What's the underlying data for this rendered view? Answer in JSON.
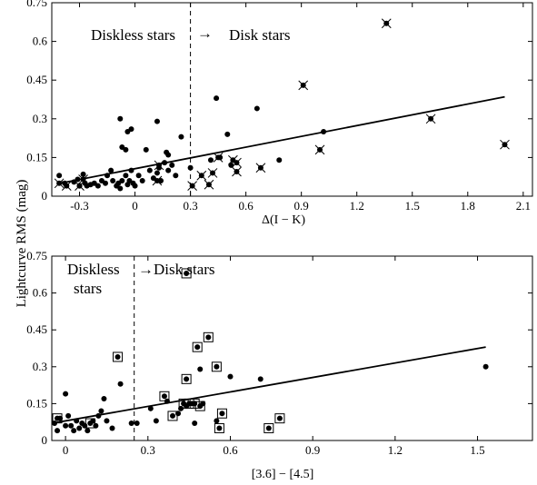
{
  "figure": {
    "ylabel": "Lightcurve RMS (mag)"
  },
  "chart_data": [
    {
      "type": "scatter",
      "xlabel": "Δ(I − K)",
      "xlim": [
        -0.45,
        2.15
      ],
      "ylim": [
        0,
        0.75
      ],
      "xticks": [
        -0.3,
        0,
        0.3,
        0.6,
        0.9,
        1.2,
        1.5,
        1.8,
        2.1
      ],
      "xtick_labels": [
        "-0.3",
        "0",
        "0.3",
        "0.6",
        "0.9",
        "1.2",
        "1.5",
        "1.8",
        "2.1"
      ],
      "yticks": [
        0,
        0.15,
        0.3,
        0.45,
        0.6,
        0.75
      ],
      "ytick_labels": [
        "0",
        "0.15",
        "0.3",
        "0.45",
        "0.6",
        "0.75"
      ],
      "divider_x": 0.3,
      "annotations": {
        "left": "Diskless stars",
        "arrow": "→",
        "right": "Disk stars"
      },
      "fit_line": {
        "x": [
          -0.42,
          2.0
        ],
        "y": [
          0.048,
          0.385
        ]
      },
      "points": [
        [
          -0.41,
          0.08
        ],
        [
          -0.38,
          0.05
        ],
        [
          -0.33,
          0.055
        ],
        [
          -0.31,
          0.065
        ],
        [
          -0.3,
          0.04
        ],
        [
          -0.28,
          0.085
        ],
        [
          -0.27,
          0.05
        ],
        [
          -0.26,
          0.04
        ],
        [
          -0.24,
          0.045
        ],
        [
          -0.22,
          0.05
        ],
        [
          -0.2,
          0.04
        ],
        [
          -0.18,
          0.06
        ],
        [
          -0.16,
          0.05
        ],
        [
          -0.15,
          0.08
        ],
        [
          -0.13,
          0.1
        ],
        [
          -0.12,
          0.06
        ],
        [
          -0.1,
          0.04
        ],
        [
          -0.09,
          0.05
        ],
        [
          -0.08,
          0.03
        ],
        [
          -0.07,
          0.06
        ],
        [
          -0.05,
          0.08
        ],
        [
          -0.04,
          0.045
        ],
        [
          -0.03,
          0.06
        ],
        [
          -0.02,
          0.1
        ],
        [
          -0.01,
          0.05
        ],
        [
          0.0,
          0.04
        ],
        [
          0.02,
          0.08
        ],
        [
          0.04,
          0.06
        ],
        [
          0.06,
          0.18
        ],
        [
          0.08,
          0.1
        ],
        [
          0.1,
          0.07
        ],
        [
          0.12,
          0.09
        ],
        [
          0.13,
          0.11
        ],
        [
          0.14,
          0.06
        ],
        [
          0.16,
          0.13
        ],
        [
          0.18,
          0.1
        ],
        [
          0.2,
          0.12
        ],
        [
          0.22,
          0.08
        ],
        [
          0.25,
          0.23
        ],
        [
          0.3,
          0.11
        ],
        [
          -0.08,
          0.3
        ],
        [
          -0.07,
          0.19
        ],
        [
          -0.05,
          0.18
        ],
        [
          -0.04,
          0.25
        ],
        [
          -0.02,
          0.26
        ],
        [
          0.12,
          0.29
        ],
        [
          0.17,
          0.17
        ],
        [
          0.18,
          0.16
        ],
        [
          0.44,
          0.38
        ],
        [
          0.66,
          0.34
        ],
        [
          0.5,
          0.24
        ],
        [
          0.78,
          0.14
        ],
        [
          1.02,
          0.25
        ],
        [
          0.41,
          0.14
        ],
        [
          0.46,
          0.15
        ],
        [
          0.52,
          0.12
        ]
      ],
      "crossed_points": [
        [
          -0.41,
          0.05
        ],
        [
          -0.37,
          0.04
        ],
        [
          -0.3,
          0.04
        ],
        [
          -0.28,
          0.065
        ],
        [
          0.12,
          0.06
        ],
        [
          0.13,
          0.12
        ],
        [
          0.31,
          0.04
        ],
        [
          0.36,
          0.08
        ],
        [
          0.4,
          0.045
        ],
        [
          0.42,
          0.09
        ],
        [
          0.45,
          0.15
        ],
        [
          0.53,
          0.14
        ],
        [
          0.55,
          0.095
        ],
        [
          0.55,
          0.13
        ],
        [
          0.68,
          0.11
        ],
        [
          0.91,
          0.43
        ],
        [
          1.0,
          0.18
        ],
        [
          1.36,
          0.67
        ],
        [
          1.6,
          0.3
        ],
        [
          2.0,
          0.2
        ]
      ]
    },
    {
      "type": "scatter",
      "xlabel": "[3.6] − [4.5]",
      "xlim": [
        -0.05,
        1.7
      ],
      "ylim": [
        0,
        0.75
      ],
      "xticks": [
        0,
        0.3,
        0.6,
        0.9,
        1.2,
        1.5
      ],
      "xtick_labels": [
        "0",
        "0.3",
        "0.6",
        "0.9",
        "1.2",
        "1.5"
      ],
      "yticks": [
        0,
        0.15,
        0.3,
        0.45,
        0.6,
        0.75
      ],
      "ytick_labels": [
        "0",
        "0.15",
        "0.3",
        "0.45",
        "0.6",
        "0.75"
      ],
      "divider_x": 0.25,
      "annotations": {
        "left_line1": "Diskless",
        "left_line2": "stars",
        "right": "→Disk stars"
      },
      "fit_line": {
        "x": [
          -0.05,
          1.53
        ],
        "y": [
          0.07,
          0.38
        ]
      },
      "points": [
        [
          -0.04,
          0.07
        ],
        [
          -0.03,
          0.04
        ],
        [
          -0.02,
          0.09
        ],
        [
          0.0,
          0.19
        ],
        [
          0.0,
          0.06
        ],
        [
          0.01,
          0.1
        ],
        [
          0.02,
          0.06
        ],
        [
          0.03,
          0.04
        ],
        [
          0.04,
          0.08
        ],
        [
          0.05,
          0.05
        ],
        [
          0.06,
          0.07
        ],
        [
          0.07,
          0.06
        ],
        [
          0.08,
          0.04
        ],
        [
          0.1,
          0.08
        ],
        [
          0.11,
          0.06
        ],
        [
          0.12,
          0.1
        ],
        [
          0.13,
          0.12
        ],
        [
          0.14,
          0.17
        ],
        [
          0.15,
          0.08
        ],
        [
          0.17,
          0.05
        ],
        [
          0.2,
          0.23
        ],
        [
          0.24,
          0.07
        ],
        [
          0.26,
          0.07
        ],
        [
          0.31,
          0.13
        ],
        [
          0.33,
          0.08
        ],
        [
          0.37,
          0.16
        ],
        [
          0.41,
          0.11
        ],
        [
          0.42,
          0.13
        ],
        [
          0.44,
          0.14
        ],
        [
          0.46,
          0.15
        ],
        [
          0.47,
          0.07
        ],
        [
          0.49,
          0.29
        ],
        [
          0.5,
          0.15
        ],
        [
          0.55,
          0.08
        ],
        [
          0.6,
          0.26
        ],
        [
          0.71,
          0.25
        ],
        [
          1.53,
          0.3
        ]
      ],
      "boxed_points": [
        [
          -0.03,
          0.09
        ],
        [
          0.09,
          0.07
        ],
        [
          0.19,
          0.34
        ],
        [
          0.36,
          0.18
        ],
        [
          0.39,
          0.1
        ],
        [
          0.43,
          0.15
        ],
        [
          0.44,
          0.68
        ],
        [
          0.44,
          0.25
        ],
        [
          0.45,
          0.15
        ],
        [
          0.47,
          0.15
        ],
        [
          0.48,
          0.38
        ],
        [
          0.49,
          0.14
        ],
        [
          0.52,
          0.42
        ],
        [
          0.55,
          0.3
        ],
        [
          0.57,
          0.11
        ],
        [
          0.56,
          0.05
        ],
        [
          0.74,
          0.05
        ],
        [
          0.78,
          0.09
        ]
      ]
    }
  ]
}
